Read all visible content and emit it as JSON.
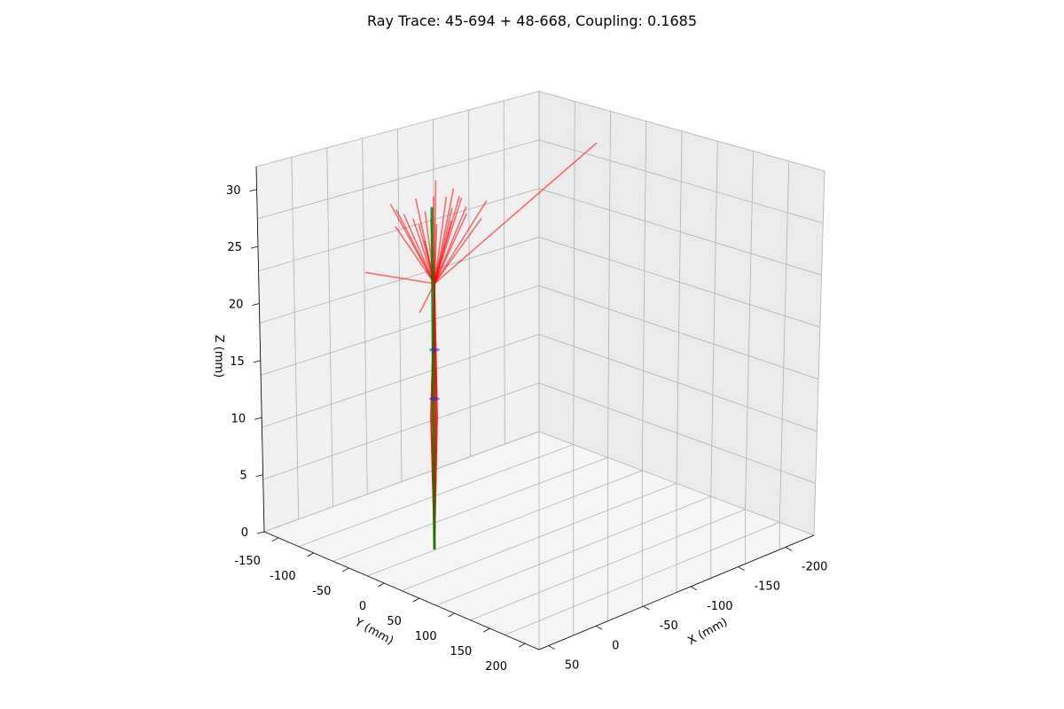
{
  "chart_data": {
    "type": "line",
    "title": "Ray Trace: 45-694 + 48-668, Coupling: 0.1685",
    "xlabel": "X (mm)",
    "ylabel": "Y (mm)",
    "zlabel": "Z (mm)",
    "x_ticks": [
      "-200",
      "-150",
      "-100",
      "-50",
      "0",
      "50"
    ],
    "y_ticks": [
      "-150",
      "-100",
      "-50",
      "0",
      "50",
      "100",
      "150",
      "200"
    ],
    "z_ticks": [
      "0",
      "5",
      "10",
      "15",
      "20",
      "25",
      "30"
    ],
    "xlim": [
      -230,
      60
    ],
    "ylim": [
      -170,
      220
    ],
    "zlim": [
      0,
      32
    ],
    "grid": true,
    "series_colors": {
      "rays": "#ff0000",
      "lens_outline": "#008000",
      "markers": "#1f1fff"
    },
    "series": [
      {
        "name": "",
        "color": "#008000",
        "points": [
          [
            0,
            0,
            0
          ],
          [
            0,
            0,
            30
          ]
        ]
      }
    ],
    "fan_apex": [
      0,
      0,
      23.3
    ],
    "fan_rays": [
      [
        -160,
        15,
        30.5
      ],
      [
        -20,
        -25,
        31
      ],
      [
        10,
        0,
        30
      ],
      [
        -5,
        10,
        31
      ],
      [
        20,
        30,
        30
      ],
      [
        -10,
        -15,
        30.2
      ],
      [
        30,
        10,
        30.3
      ],
      [
        -25,
        5,
        30.1
      ],
      [
        5,
        -20,
        30.4
      ],
      [
        15,
        15,
        29.9
      ],
      [
        -15,
        25,
        30.2
      ],
      [
        25,
        -10,
        30
      ],
      [
        -30,
        -5,
        29.8
      ],
      [
        0,
        25,
        30.6
      ],
      [
        35,
        25,
        30.4
      ],
      [
        40,
        40,
        29.5
      ],
      [
        -40,
        20,
        29.7
      ],
      [
        18,
        -30,
        29.6
      ],
      [
        -8,
        35,
        30.1
      ],
      [
        -35,
        -20,
        29.9
      ],
      [
        12,
        40,
        30.3
      ],
      [
        28,
        -25,
        30.6
      ],
      [
        -20,
        40,
        29.4
      ],
      [
        45,
        5,
        30
      ],
      [
        140,
        90,
        31.5
      ],
      [
        60,
        80,
        28.6
      ],
      [
        90,
        100,
        26.5
      ]
    ],
    "z_markers": [
      13.2,
      17.5
    ]
  }
}
